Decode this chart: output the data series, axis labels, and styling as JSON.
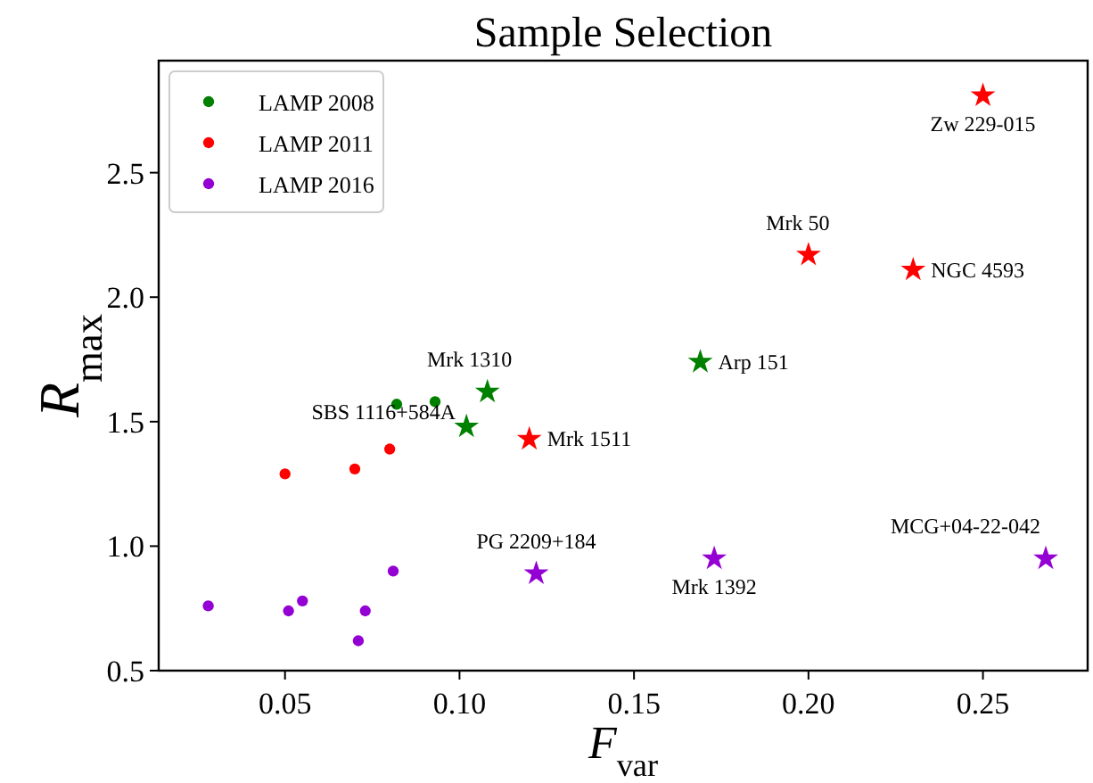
{
  "chart_data": {
    "type": "scatter",
    "title": "Sample Selection",
    "xlabel": "F$_{var}$",
    "ylabel": "R$_{max}$",
    "xlim": [
      0.0138,
      0.28
    ],
    "ylim": [
      0.5,
      2.95
    ],
    "xticks": [
      0.05,
      {
        "value": 0.1,
        "label": "0.10"
      },
      0.15,
      {
        "value": 0.2,
        "label": "0.20"
      },
      0.25
    ],
    "yticks": [
      0.5,
      {
        "value": 1,
        "label": "1.0"
      },
      1.5,
      {
        "value": 2,
        "label": "2.0"
      },
      2.5
    ],
    "legend": "top left",
    "grid": false,
    "series": [
      {
        "name": "LAMP 2008",
        "color": "#008000",
        "marker": "circle",
        "x": [
          0.082,
          0.093
        ],
        "values": [
          1.57,
          1.58
        ]
      },
      {
        "name": "LAMP 2011",
        "color": "#ff0000",
        "marker": "circle",
        "x": [
          0.05,
          0.07,
          0.08
        ],
        "values": [
          1.29,
          1.31,
          1.39
        ]
      },
      {
        "name": "LAMP 2016",
        "color": "#9400d3",
        "marker": "circle",
        "x": [
          0.028,
          0.051,
          0.055,
          0.071,
          0.073,
          0.081
        ],
        "values": [
          0.76,
          0.74,
          0.78,
          0.62,
          0.74,
          0.9
        ]
      },
      {
        "color": "#008000",
        "marker": "star",
        "x": [
          0.108,
          0.102,
          0.169
        ],
        "values": [
          1.62,
          1.48,
          1.74
        ]
      },
      {
        "color": "#ff0000",
        "marker": "star",
        "x": [
          0.12,
          0.2,
          0.23,
          0.25
        ],
        "values": [
          1.43,
          2.17,
          2.11,
          2.81
        ]
      },
      {
        "color": "#9400d3",
        "marker": "star",
        "x": [
          0.122,
          0.173,
          0.268
        ],
        "values": [
          0.89,
          0.95,
          0.95
        ]
      }
    ],
    "annotations": [
      {
        "text": "Mrk 1310",
        "x": 0.108,
        "y": 1.62
      },
      {
        "text": "SBS 1116+584A",
        "x": 0.102,
        "y": 1.48
      },
      {
        "text": "Arp 151",
        "x": 0.169,
        "y": 1.74
      },
      {
        "text": "Mrk 1511",
        "x": 0.12,
        "y": 1.43
      },
      {
        "text": "Mrk 50",
        "x": 0.2,
        "y": 2.17
      },
      {
        "text": "NGC 4593",
        "x": 0.23,
        "y": 2.11
      },
      {
        "text": "Zw 229-015",
        "x": 0.25,
        "y": 2.81
      },
      {
        "text": "PG 2209+184",
        "x": 0.122,
        "y": 0.89
      },
      {
        "text": "Mrk 1392",
        "x": 0.173,
        "y": 0.95
      },
      {
        "text": "MCG+04-22-042",
        "x": 0.268,
        "y": 0.95
      }
    ]
  }
}
